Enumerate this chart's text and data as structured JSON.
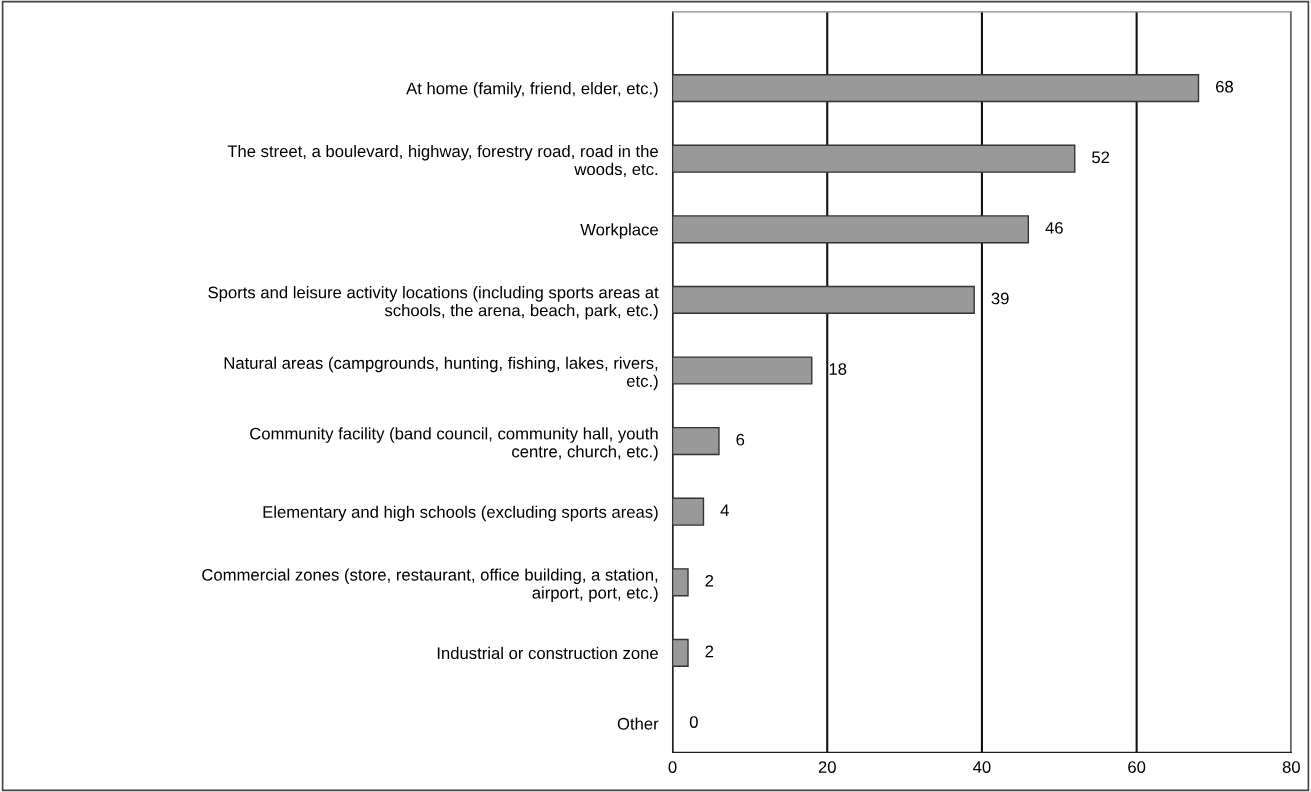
{
  "chart_data": {
    "type": "bar",
    "orientation": "horizontal",
    "categories": [
      "At home (family, friend, elder, etc.)",
      "The street, a boulevard, highway, forestry road, road in the\nwoods, etc.",
      "Workplace",
      "Sports and leisure activity locations (including sports areas at\nschools, the arena, beach, park, etc.)",
      "Natural areas (campgrounds, hunting, fishing, lakes, rivers,\netc.)",
      "Community facility (band council, community hall, youth\ncentre, church, etc.)",
      "Elementary and high schools (excluding sports areas)",
      "Commercial zones (store, restaurant, office building, a station,\nairport, port, etc.)",
      "Industrial or construction zone",
      "Other"
    ],
    "values": [
      68,
      52,
      46,
      39,
      18,
      6,
      4,
      2,
      2,
      0
    ],
    "color": "#999999",
    "xlim": [
      0,
      80
    ],
    "xticks": [
      0,
      20,
      40,
      60,
      80
    ],
    "grid": "x",
    "data_labels": true
  }
}
